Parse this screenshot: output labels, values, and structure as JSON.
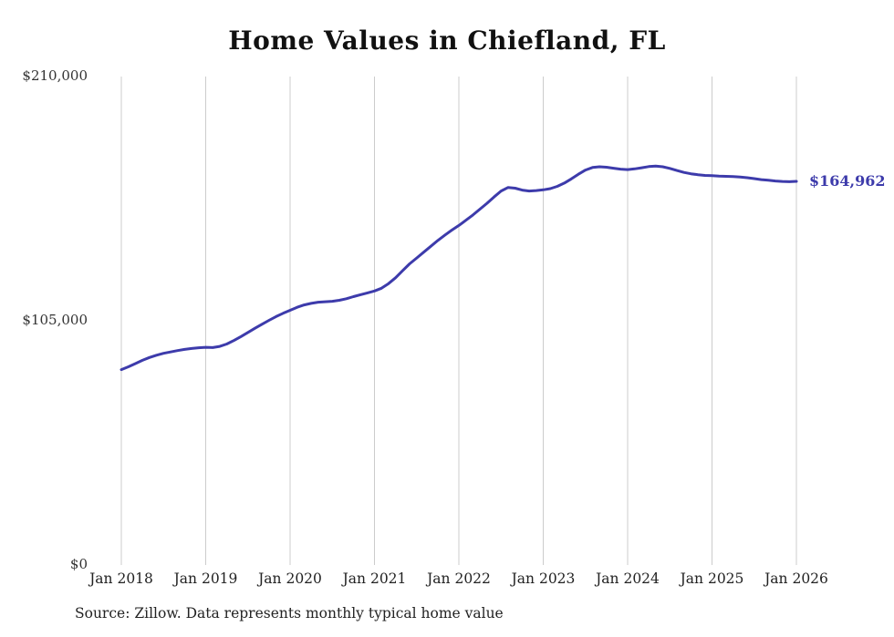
{
  "title": "Home Values in Chiefland, FL",
  "annotation": {
    "label": "$164,962"
  },
  "footer": {
    "source_note": "Source: Zillow. Data represents monthly typical home value"
  },
  "colors": {
    "line": "#3d3bab",
    "annotation": "#3d3bab",
    "grid": "#cccccc",
    "tick_text": "#333333",
    "background": "#ffffff"
  },
  "chart_data": {
    "type": "line",
    "title": "Home Values in Chiefland, FL",
    "xlabel": "",
    "ylabel": "",
    "ylim": [
      0,
      210000
    ],
    "grid": "vertical",
    "legend": "none",
    "x_tick_labels": [
      "Jan 2018",
      "Jan 2019",
      "Jan 2020",
      "Jan 2021",
      "Jan 2022",
      "Jan 2023",
      "Jan 2024",
      "Jan 2025",
      "Jan 2026"
    ],
    "y_ticks": [
      {
        "label": "$0",
        "value": 0
      },
      {
        "label": "$105,000",
        "value": 105000
      },
      {
        "label": "$210,000",
        "value": 210000
      }
    ],
    "final_value": 164962,
    "final_value_label": "$164,962",
    "series": [
      {
        "name": "Typical home value",
        "frequency": "monthly",
        "start": "Jan 2018",
        "end": "Jan 2026",
        "values": [
          84000,
          85200,
          86600,
          88000,
          89200,
          90200,
          91000,
          91600,
          92200,
          92700,
          93100,
          93400,
          93600,
          93500,
          94000,
          95000,
          96500,
          98200,
          100000,
          101800,
          103500,
          105200,
          106800,
          108200,
          109500,
          110800,
          111800,
          112500,
          113000,
          113200,
          113400,
          113800,
          114500,
          115400,
          116200,
          117000,
          117800,
          119000,
          121000,
          123500,
          126500,
          129500,
          132000,
          134500,
          137000,
          139500,
          141800,
          144000,
          146000,
          148200,
          150500,
          153000,
          155500,
          158200,
          160800,
          162300,
          162000,
          161200,
          160800,
          161000,
          161300,
          161800,
          162800,
          164200,
          166000,
          168000,
          169800,
          170900,
          171200,
          171000,
          170600,
          170200,
          170000,
          170300,
          170800,
          171300,
          171500,
          171200,
          170500,
          169600,
          168800,
          168200,
          167800,
          167500,
          167400,
          167200,
          167100,
          167000,
          166800,
          166500,
          166100,
          165700,
          165400,
          165100,
          164900,
          164800,
          164962
        ]
      }
    ]
  }
}
